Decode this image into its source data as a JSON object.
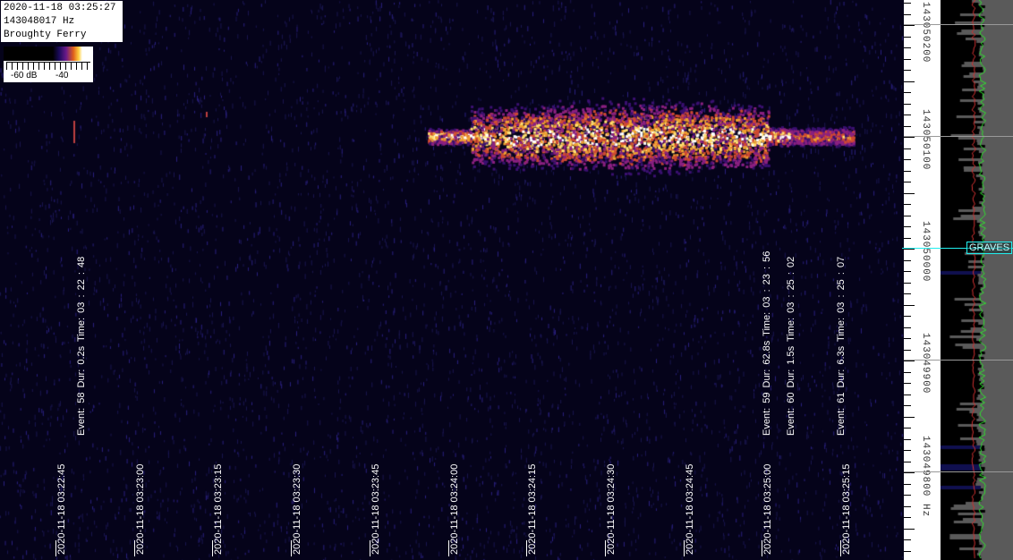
{
  "info": {
    "datetime": "2020-11-18 03:25:27",
    "frequency": "143048017 Hz",
    "location": "Broughty Ferry"
  },
  "colorscale": {
    "min_label": "-60 dB",
    "max_label": "-40"
  },
  "time_labels": [
    "2020-11-18 03:22:45",
    "2020-11-18 03:23:00",
    "2020-11-18 03:23:15",
    "2020-11-18 03:23:30",
    "2020-11-18 03:23:45",
    "2020-11-18 03:24:00",
    "2020-11-18 03:24:15",
    "2020-11-18 03:24:30",
    "2020-11-18 03:24:45",
    "2020-11-18 03:25:00",
    "2020-11-18 03:25:15"
  ],
  "events": [
    {
      "text": "Event: 58  Dur: 0.2s  Time: 03 : 22 : 48"
    },
    {
      "text": "Event: 59  Dur: 62.8s  Time: 03 : 23 : 56"
    },
    {
      "text": "Event: 60  Dur: 1.5s  Time: 03 : 25 : 02"
    },
    {
      "text": "Event: 61  Dur: 6.3s  Time: 03 : 25 : 07"
    }
  ],
  "freq_labels": [
    "143050200",
    "143050100",
    "143050000",
    "143049900",
    "143049800 Hz"
  ],
  "marker": {
    "label": "GRAVES",
    "color": "#22eeee"
  },
  "colors": {
    "background": "#05031a",
    "spectrum_avg": "#d03030",
    "spectrum_peak": "#30e030"
  }
}
